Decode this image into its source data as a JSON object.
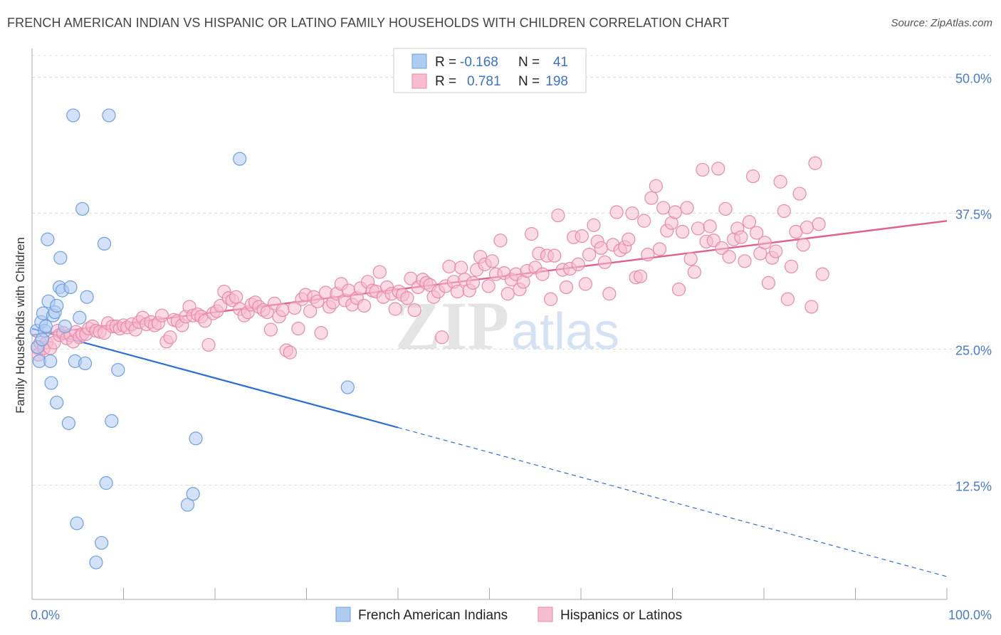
{
  "title": "FRENCH AMERICAN INDIAN VS HISPANIC OR LATINO FAMILY HOUSEHOLDS WITH CHILDREN CORRELATION CHART",
  "source": "Source: ZipAtlas.com",
  "watermark": {
    "zip": "ZIP",
    "atlas": "atlas"
  },
  "colors": {
    "blue_fill": "#aecbf0",
    "blue_stroke": "#6f9fe0",
    "blue_line": "#2f6fd0",
    "pink_fill": "#f6bcd0",
    "pink_stroke": "#e88aaa",
    "pink_line": "#e0608c",
    "tick_text": "#4a7bc8",
    "grid": "#dddddd"
  },
  "legend": {
    "rows": [
      {
        "r_label": "R =",
        "r_value": "-0.168",
        "n_label": "N =",
        "n_value": "41"
      },
      {
        "r_label": "R =",
        "r_value": "0.781",
        "n_label": "N =",
        "n_value": "198"
      }
    ]
  },
  "bottom_legend": [
    "French American Indians",
    "Hispanics or Latinos"
  ],
  "chart_data": {
    "type": "scatter",
    "title": "FRENCH AMERICAN INDIAN VS HISPANIC OR LATINO FAMILY HOUSEHOLDS WITH CHILDREN CORRELATION CHART",
    "xlabel": "",
    "ylabel": "Family Households with Children",
    "xlim": [
      0,
      100
    ],
    "ylim": [
      2,
      52
    ],
    "x_tick_labels": [
      "0.0%",
      "100.0%"
    ],
    "y_ticks": [
      12.5,
      25.0,
      37.5,
      50.0
    ],
    "y_tick_labels": [
      "12.5%",
      "25.0%",
      "37.5%",
      "50.0%"
    ],
    "grid": "horizontal dashed",
    "legend_position": "top-center",
    "series": [
      {
        "name": "French American Indians",
        "r": -0.168,
        "n": 41,
        "trend": {
          "x0": 0,
          "y0": 26.9,
          "x1": 40,
          "y1": 17.8,
          "dash_to_x": 100,
          "dash_to_y": 4.1
        },
        "points": [
          [
            0.5,
            26.7
          ],
          [
            0.6,
            25.2
          ],
          [
            0.8,
            23.9
          ],
          [
            1.0,
            27.5
          ],
          [
            1.2,
            28.3
          ],
          [
            1.4,
            26.7
          ],
          [
            1.5,
            27.1
          ],
          [
            1.8,
            29.4
          ],
          [
            1.7,
            35.1
          ],
          [
            2.0,
            23.9
          ],
          [
            2.1,
            21.9
          ],
          [
            2.3,
            28.1
          ],
          [
            2.5,
            28.4
          ],
          [
            2.7,
            20.1
          ],
          [
            3.0,
            30.7
          ],
          [
            3.1,
            33.4
          ],
          [
            3.3,
            30.4
          ],
          [
            3.6,
            27.1
          ],
          [
            4.0,
            18.2
          ],
          [
            4.2,
            30.7
          ],
          [
            4.5,
            46.5
          ],
          [
            4.7,
            23.9
          ],
          [
            4.9,
            9.0
          ],
          [
            5.2,
            27.9
          ],
          [
            5.5,
            37.9
          ],
          [
            5.8,
            23.7
          ],
          [
            6.0,
            29.8
          ],
          [
            7.0,
            5.4
          ],
          [
            7.6,
            7.2
          ],
          [
            7.9,
            34.7
          ],
          [
            8.1,
            12.7
          ],
          [
            8.4,
            46.5
          ],
          [
            8.7,
            18.4
          ],
          [
            9.4,
            23.1
          ],
          [
            17.0,
            10.7
          ],
          [
            17.6,
            11.7
          ],
          [
            17.9,
            16.8
          ],
          [
            22.7,
            42.5
          ],
          [
            34.5,
            21.5
          ],
          [
            1.1,
            25.9
          ],
          [
            2.7,
            29.0
          ]
        ]
      },
      {
        "name": "Hispanics or Latinos",
        "r": 0.781,
        "n": 198,
        "trend": {
          "x0": 0,
          "y0": 26.3,
          "x1": 100,
          "y1": 36.8
        },
        "points": [
          [
            0.6,
            25.1
          ],
          [
            0.7,
            24.5
          ],
          [
            0.9,
            25.6
          ],
          [
            1.3,
            25.1
          ],
          [
            1.6,
            25.6
          ],
          [
            2.0,
            25.1
          ],
          [
            2.4,
            25.6
          ],
          [
            2.8,
            26.7
          ],
          [
            3.0,
            26.3
          ],
          [
            3.4,
            26.5
          ],
          [
            3.8,
            26.0
          ],
          [
            4.2,
            26.3
          ],
          [
            4.5,
            25.7
          ],
          [
            4.8,
            26.6
          ],
          [
            5.2,
            26.1
          ],
          [
            5.5,
            26.4
          ],
          [
            5.9,
            26.4
          ],
          [
            6.2,
            26.9
          ],
          [
            6.6,
            27.1
          ],
          [
            7.0,
            26.7
          ],
          [
            7.4,
            26.6
          ],
          [
            7.9,
            26.5
          ],
          [
            8.3,
            27.4
          ],
          [
            8.8,
            27.1
          ],
          [
            9.2,
            27.1
          ],
          [
            9.6,
            26.9
          ],
          [
            10.0,
            27.2
          ],
          [
            10.4,
            27.0
          ],
          [
            10.9,
            27.3
          ],
          [
            11.3,
            26.8
          ],
          [
            11.7,
            27.5
          ],
          [
            12.1,
            27.9
          ],
          [
            12.5,
            27.3
          ],
          [
            13.0,
            27.5
          ],
          [
            13.4,
            27.2
          ],
          [
            13.8,
            27.4
          ],
          [
            14.2,
            28.1
          ],
          [
            14.7,
            25.7
          ],
          [
            15.1,
            26.1
          ],
          [
            15.5,
            27.7
          ],
          [
            15.9,
            27.6
          ],
          [
            16.4,
            27.2
          ],
          [
            16.8,
            28.0
          ],
          [
            17.2,
            28.9
          ],
          [
            17.6,
            28.1
          ],
          [
            18.1,
            28.2
          ],
          [
            18.5,
            28.0
          ],
          [
            18.9,
            27.6
          ],
          [
            19.3,
            25.4
          ],
          [
            19.8,
            28.3
          ],
          [
            20.2,
            28.5
          ],
          [
            20.6,
            29.0
          ],
          [
            21.0,
            30.3
          ],
          [
            21.5,
            29.7
          ],
          [
            21.9,
            29.5
          ],
          [
            22.3,
            29.8
          ],
          [
            22.7,
            28.7
          ],
          [
            23.2,
            28.1
          ],
          [
            23.6,
            28.4
          ],
          [
            24.0,
            29.1
          ],
          [
            24.4,
            29.3
          ],
          [
            24.8,
            28.9
          ],
          [
            25.3,
            28.6
          ],
          [
            25.7,
            28.4
          ],
          [
            26.1,
            26.8
          ],
          [
            26.5,
            29.2
          ],
          [
            27.0,
            28.0
          ],
          [
            27.4,
            28.6
          ],
          [
            27.8,
            24.9
          ],
          [
            28.2,
            24.7
          ],
          [
            28.7,
            28.8
          ],
          [
            29.1,
            26.9
          ],
          [
            29.5,
            29.6
          ],
          [
            29.9,
            30.0
          ],
          [
            30.4,
            28.5
          ],
          [
            30.8,
            29.8
          ],
          [
            31.2,
            29.4
          ],
          [
            31.6,
            26.5
          ],
          [
            32.1,
            30.2
          ],
          [
            32.5,
            28.9
          ],
          [
            32.9,
            29.3
          ],
          [
            33.3,
            30.1
          ],
          [
            33.8,
            31.0
          ],
          [
            34.2,
            29.5
          ],
          [
            34.6,
            30.4
          ],
          [
            35.0,
            29.1
          ],
          [
            35.5,
            29.7
          ],
          [
            35.9,
            30.6
          ],
          [
            36.3,
            29.0
          ],
          [
            36.7,
            31.2
          ],
          [
            37.2,
            30.4
          ],
          [
            37.6,
            30.3
          ],
          [
            38.0,
            32.1
          ],
          [
            38.4,
            29.8
          ],
          [
            38.8,
            30.7
          ],
          [
            39.3,
            30.1
          ],
          [
            39.7,
            28.7
          ],
          [
            40.1,
            30.3
          ],
          [
            40.5,
            30.0
          ],
          [
            41.0,
            29.7
          ],
          [
            41.4,
            31.5
          ],
          [
            41.8,
            28.6
          ],
          [
            42.2,
            30.7
          ],
          [
            42.7,
            31.4
          ],
          [
            43.1,
            31.1
          ],
          [
            43.5,
            30.9
          ],
          [
            43.9,
            29.8
          ],
          [
            44.4,
            30.3
          ],
          [
            44.8,
            26.1
          ],
          [
            45.2,
            30.8
          ],
          [
            45.6,
            32.6
          ],
          [
            46.1,
            31.2
          ],
          [
            46.5,
            30.3
          ],
          [
            46.9,
            32.5
          ],
          [
            47.3,
            31.4
          ],
          [
            47.8,
            30.4
          ],
          [
            48.2,
            31.1
          ],
          [
            48.6,
            32.3
          ],
          [
            49.0,
            33.5
          ],
          [
            49.5,
            32.8
          ],
          [
            49.9,
            30.8
          ],
          [
            50.3,
            33.1
          ],
          [
            50.7,
            31.9
          ],
          [
            51.2,
            35.0
          ],
          [
            51.6,
            32.0
          ],
          [
            52.0,
            30.1
          ],
          [
            52.4,
            31.4
          ],
          [
            52.9,
            31.9
          ],
          [
            53.3,
            30.5
          ],
          [
            53.7,
            31.2
          ],
          [
            54.1,
            32.2
          ],
          [
            54.6,
            35.6
          ],
          [
            55.0,
            32.5
          ],
          [
            55.4,
            33.8
          ],
          [
            55.8,
            31.9
          ],
          [
            56.3,
            33.6
          ],
          [
            56.7,
            29.6
          ],
          [
            57.1,
            33.6
          ],
          [
            57.5,
            37.3
          ],
          [
            58.0,
            32.3
          ],
          [
            58.4,
            30.7
          ],
          [
            58.8,
            32.4
          ],
          [
            59.2,
            35.3
          ],
          [
            59.7,
            32.8
          ],
          [
            60.1,
            35.4
          ],
          [
            60.5,
            31.0
          ],
          [
            60.9,
            33.7
          ],
          [
            61.4,
            36.4
          ],
          [
            61.8,
            34.9
          ],
          [
            62.2,
            34.3
          ],
          [
            62.6,
            33.0
          ],
          [
            63.1,
            30.1
          ],
          [
            63.5,
            34.6
          ],
          [
            63.9,
            37.6
          ],
          [
            64.3,
            34.1
          ],
          [
            64.8,
            34.4
          ],
          [
            65.2,
            35.1
          ],
          [
            65.6,
            37.5
          ],
          [
            66.0,
            31.6
          ],
          [
            66.5,
            31.7
          ],
          [
            66.9,
            36.8
          ],
          [
            67.3,
            33.7
          ],
          [
            67.7,
            38.9
          ],
          [
            68.2,
            40.0
          ],
          [
            68.6,
            34.2
          ],
          [
            69.0,
            38.0
          ],
          [
            69.4,
            35.9
          ],
          [
            69.9,
            36.6
          ],
          [
            70.3,
            37.6
          ],
          [
            70.7,
            30.5
          ],
          [
            71.1,
            35.8
          ],
          [
            71.6,
            38.0
          ],
          [
            72.0,
            33.3
          ],
          [
            72.4,
            32.1
          ],
          [
            72.8,
            36.1
          ],
          [
            73.3,
            41.5
          ],
          [
            73.7,
            34.9
          ],
          [
            74.1,
            36.3
          ],
          [
            74.5,
            35.0
          ],
          [
            75.0,
            41.6
          ],
          [
            75.4,
            34.3
          ],
          [
            75.8,
            37.9
          ],
          [
            76.2,
            33.5
          ],
          [
            76.7,
            35.1
          ],
          [
            77.1,
            36.1
          ],
          [
            77.5,
            35.3
          ],
          [
            77.9,
            33.1
          ],
          [
            78.4,
            36.7
          ],
          [
            78.8,
            40.9
          ],
          [
            79.2,
            35.7
          ],
          [
            79.6,
            33.8
          ],
          [
            80.1,
            34.8
          ],
          [
            80.5,
            31.1
          ],
          [
            80.9,
            33.4
          ],
          [
            81.3,
            34.0
          ],
          [
            81.8,
            40.4
          ],
          [
            82.2,
            37.7
          ],
          [
            82.6,
            29.6
          ],
          [
            83.0,
            32.6
          ],
          [
            83.5,
            35.8
          ],
          [
            83.9,
            39.3
          ],
          [
            84.3,
            34.6
          ],
          [
            84.7,
            36.2
          ],
          [
            85.2,
            28.9
          ],
          [
            85.6,
            42.1
          ],
          [
            86.0,
            36.5
          ],
          [
            86.4,
            31.9
          ]
        ]
      }
    ]
  }
}
